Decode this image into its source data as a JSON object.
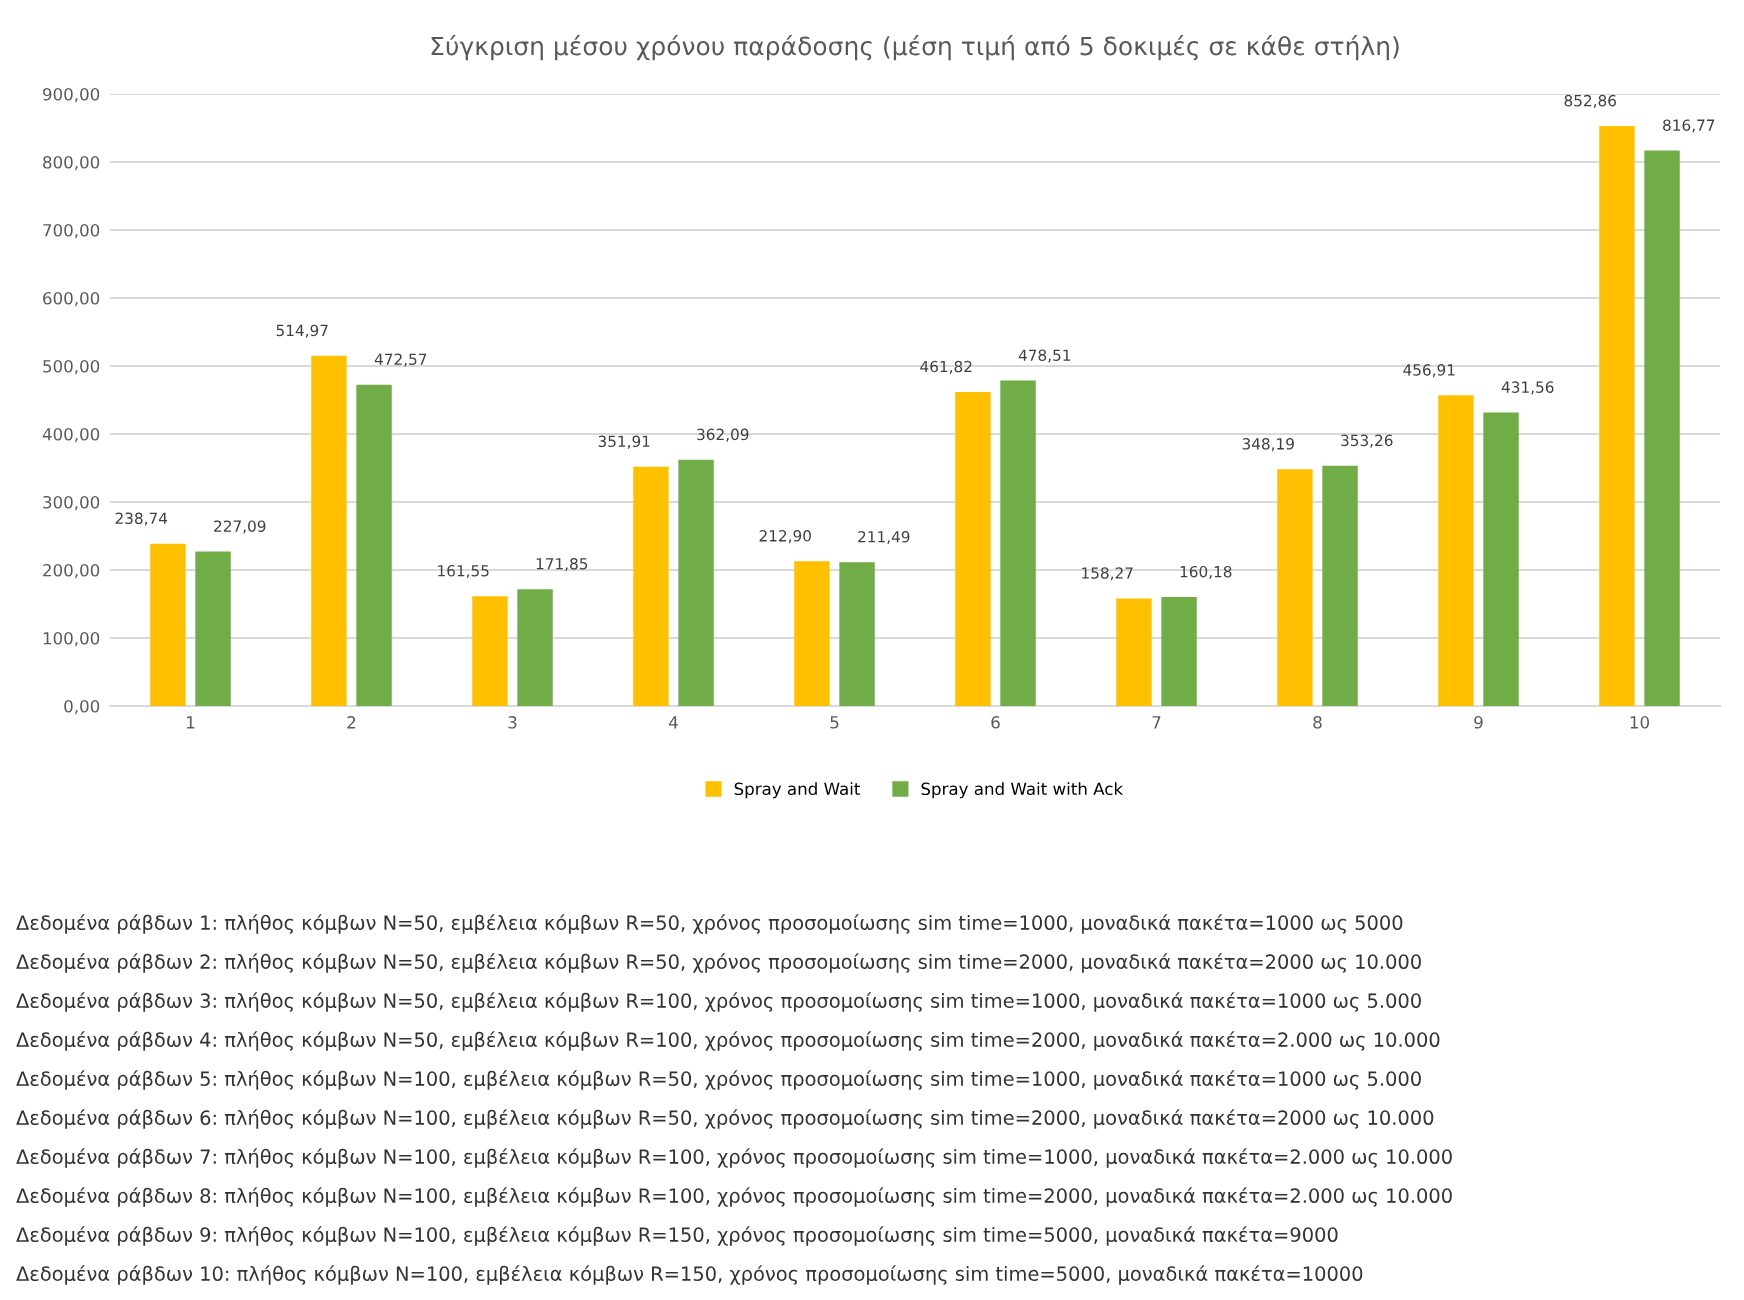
{
  "chart_data": {
    "type": "bar",
    "title": "Σύγκριση μέσου χρόνου παράδοσης (μέση τιμή από 5 δοκιμές σε κάθε στήλη)",
    "categories": [
      "1",
      "2",
      "3",
      "4",
      "5",
      "6",
      "7",
      "8",
      "9",
      "10"
    ],
    "series": [
      {
        "name": "Spray and Wait",
        "color": "#ffc000",
        "values": [
          238.74,
          514.97,
          161.55,
          351.91,
          212.9,
          461.82,
          158.27,
          348.19,
          456.91,
          852.86
        ],
        "value_labels": [
          "238,74",
          "514,97",
          "161,55",
          "351,91",
          "212,90",
          "461,82",
          "158,27",
          "348,19",
          "456,91",
          "852,86"
        ]
      },
      {
        "name": "Spray and Wait with Ack",
        "color": "#70ad47",
        "values": [
          227.09,
          472.57,
          171.85,
          362.09,
          211.49,
          478.51,
          160.18,
          353.26,
          431.56,
          816.77
        ],
        "value_labels": [
          "227,09",
          "472,57",
          "171,85",
          "362,09",
          "211,49",
          "478,51",
          "160,18",
          "353,26",
          "431,56",
          "816,77"
        ]
      }
    ],
    "ylim": [
      0,
      900
    ],
    "yticks": [
      {
        "value": 0,
        "label": "0,00"
      },
      {
        "value": 100,
        "label": "100,00"
      },
      {
        "value": 200,
        "label": "200,00"
      },
      {
        "value": 300,
        "label": "300,00"
      },
      {
        "value": 400,
        "label": "400,00"
      },
      {
        "value": 500,
        "label": "500,00"
      },
      {
        "value": 600,
        "label": "600,00"
      },
      {
        "value": 700,
        "label": "700,00"
      },
      {
        "value": 800,
        "label": "800,00"
      },
      {
        "value": 900,
        "label": "900,00"
      }
    ],
    "grid": "y",
    "legend": "bottom",
    "annotations": [
      "Δεδομένα ράβδων 1: πλήθος κόμβων N=50, εμβέλεια κόμβων R=50, χρόνος προσομοίωσης sim time=1000, μοναδικά πακέτα=1000 ως 5000",
      "Δεδομένα ράβδων 2: πλήθος κόμβων N=50, εμβέλεια κόμβων R=50, χρόνος προσομοίωσης sim time=2000, μοναδικά πακέτα=2000 ως 10.000",
      "Δεδομένα ράβδων 3: πλήθος κόμβων N=50, εμβέλεια κόμβων R=100, χρόνος προσομοίωσης sim time=1000, μοναδικά πακέτα=1000 ως 5.000",
      "Δεδομένα ράβδων 4: πλήθος κόμβων N=50, εμβέλεια κόμβων R=100, χρόνος προσομοίωσης sim time=2000, μοναδικά πακέτα=2.000 ως 10.000",
      "Δεδομένα ράβδων 5: πλήθος κόμβων N=100, εμβέλεια κόμβων R=50, χρόνος προσομοίωσης sim time=1000, μοναδικά πακέτα=1000 ως 5.000",
      "Δεδομένα ράβδων 6: πλήθος κόμβων N=100, εμβέλεια κόμβων R=50, χρόνος προσομοίωσης sim time=2000, μοναδικά πακέτα=2000 ως 10.000",
      "Δεδομένα ράβδων 7: πλήθος κόμβων N=100, εμβέλεια κόμβων R=100, χρόνος προσομοίωσης sim time=1000, μοναδικά πακέτα=2.000 ως 10.000",
      "Δεδομένα ράβδων 8: πλήθος κόμβων N=100, εμβέλεια κόμβων R=100, χρόνος προσομοίωσης sim time=2000, μοναδικά πακέτα=2.000 ως 10.000",
      "Δεδομένα ράβδων 9: πλήθος κόμβων N=100, εμβέλεια κόμβων R=150, χρόνος προσομοίωσης sim time=5000, μοναδικά πακέτα=9000",
      "Δεδομένα ράβδων 10: πλήθος κόμβων N=100, εμβέλεια κόμβων R=150, χρόνος προσομοίωσης sim time=5000, μοναδικά πακέτα=10000"
    ]
  }
}
